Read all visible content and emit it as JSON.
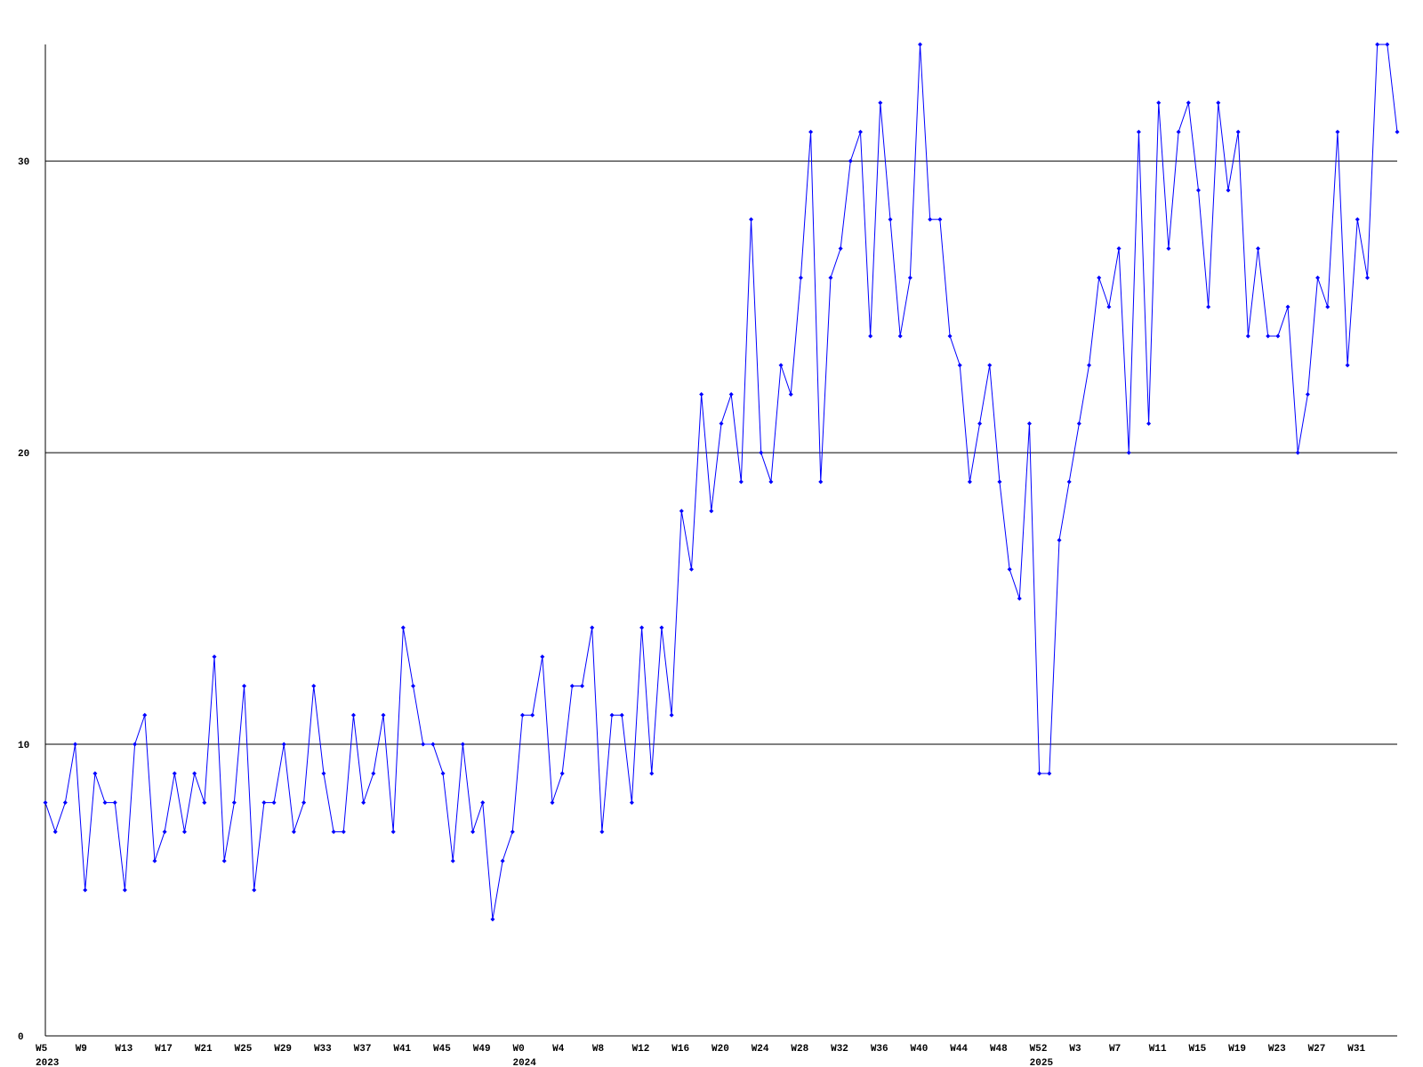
{
  "chart_data": {
    "type": "line",
    "categories": [
      "W5",
      null,
      null,
      null,
      "W9",
      null,
      null,
      null,
      "W13",
      null,
      null,
      null,
      "W17",
      null,
      null,
      null,
      "W21",
      null,
      null,
      null,
      "W25",
      null,
      null,
      null,
      "W29",
      null,
      null,
      null,
      "W33",
      null,
      null,
      null,
      "W37",
      null,
      null,
      null,
      "W41",
      null,
      null,
      null,
      "W45",
      null,
      null,
      null,
      "W49",
      null,
      null,
      null,
      "W0",
      null,
      null,
      null,
      "W4",
      null,
      null,
      null,
      "W8",
      null,
      null,
      null,
      "W12",
      null,
      null,
      null,
      "W16",
      null,
      null,
      null,
      "W20",
      null,
      null,
      null,
      "W24",
      null,
      null,
      null,
      "W28",
      null,
      null,
      null,
      "W32",
      null,
      null,
      null,
      "W36",
      null,
      null,
      null,
      "W40",
      null,
      null,
      null,
      "W44",
      null,
      null,
      null,
      "W48",
      null,
      null,
      null,
      "W52",
      null,
      null,
      null,
      "W3",
      null,
      null,
      null,
      "W7",
      null,
      null,
      null,
      "W11",
      null,
      null,
      null,
      "W15",
      null,
      null,
      null,
      "W19",
      null,
      null,
      null,
      "W23",
      null,
      null,
      null,
      "W27",
      null,
      null,
      null,
      "W31",
      null,
      null,
      null,
      null
    ],
    "years": [
      "2023",
      null,
      null,
      null,
      null,
      null,
      null,
      null,
      null,
      null,
      null,
      null,
      null,
      null,
      null,
      null,
      null,
      null,
      null,
      null,
      null,
      null,
      null,
      null,
      null,
      null,
      null,
      null,
      null,
      null,
      null,
      null,
      null,
      null,
      null,
      null,
      null,
      null,
      null,
      null,
      null,
      null,
      null,
      null,
      null,
      null,
      null,
      null,
      "2024",
      null,
      null,
      null,
      null,
      null,
      null,
      null,
      null,
      null,
      null,
      null,
      null,
      null,
      null,
      null,
      null,
      null,
      null,
      null,
      null,
      null,
      null,
      null,
      null,
      null,
      null,
      null,
      null,
      null,
      null,
      null,
      null,
      null,
      null,
      null,
      null,
      null,
      null,
      null,
      null,
      null,
      null,
      null,
      null,
      null,
      null,
      null,
      null,
      null,
      null,
      null,
      "2025",
      null,
      null,
      null,
      null,
      null,
      null,
      null,
      null,
      null,
      null,
      null,
      null,
      null,
      null,
      null,
      null,
      null,
      null,
      null,
      null,
      null,
      null,
      null,
      null,
      null,
      null,
      null,
      null,
      null,
      null,
      null,
      null,
      null,
      null,
      null
    ],
    "series": [
      {
        "color": "#0000ff",
        "values": [
          8,
          7,
          8,
          10,
          5,
          9,
          8,
          8,
          5,
          10,
          11,
          6,
          7,
          9,
          7,
          9,
          8,
          13,
          6,
          8,
          12,
          5,
          8,
          8,
          10,
          7,
          8,
          12,
          9,
          7,
          7,
          11,
          8,
          9,
          11,
          7,
          14,
          12,
          10,
          10,
          9,
          6,
          10,
          7,
          8,
          4,
          6,
          7,
          11,
          11,
          13,
          8,
          9,
          12,
          12,
          14,
          7,
          11,
          11,
          8,
          14,
          9,
          14,
          11,
          18,
          16,
          22,
          18,
          21,
          22,
          19,
          28,
          20,
          19,
          23,
          22,
          26,
          31,
          19,
          26,
          27,
          30,
          31,
          24,
          32,
          28,
          24,
          26,
          34,
          28,
          28,
          24,
          23,
          19,
          21,
          23,
          19,
          16,
          15,
          21,
          9,
          9,
          17,
          19,
          21,
          23,
          26,
          25,
          27,
          20,
          31,
          21,
          32,
          27,
          31,
          32,
          29,
          25,
          32,
          29,
          31,
          24,
          27,
          24,
          24,
          25,
          20,
          22,
          26,
          25,
          31,
          23,
          28,
          26,
          34,
          34,
          31
        ]
      }
    ],
    "ylim": [
      0,
      34
    ],
    "yticks": [
      0,
      10,
      20,
      30
    ],
    "grid": true
  }
}
